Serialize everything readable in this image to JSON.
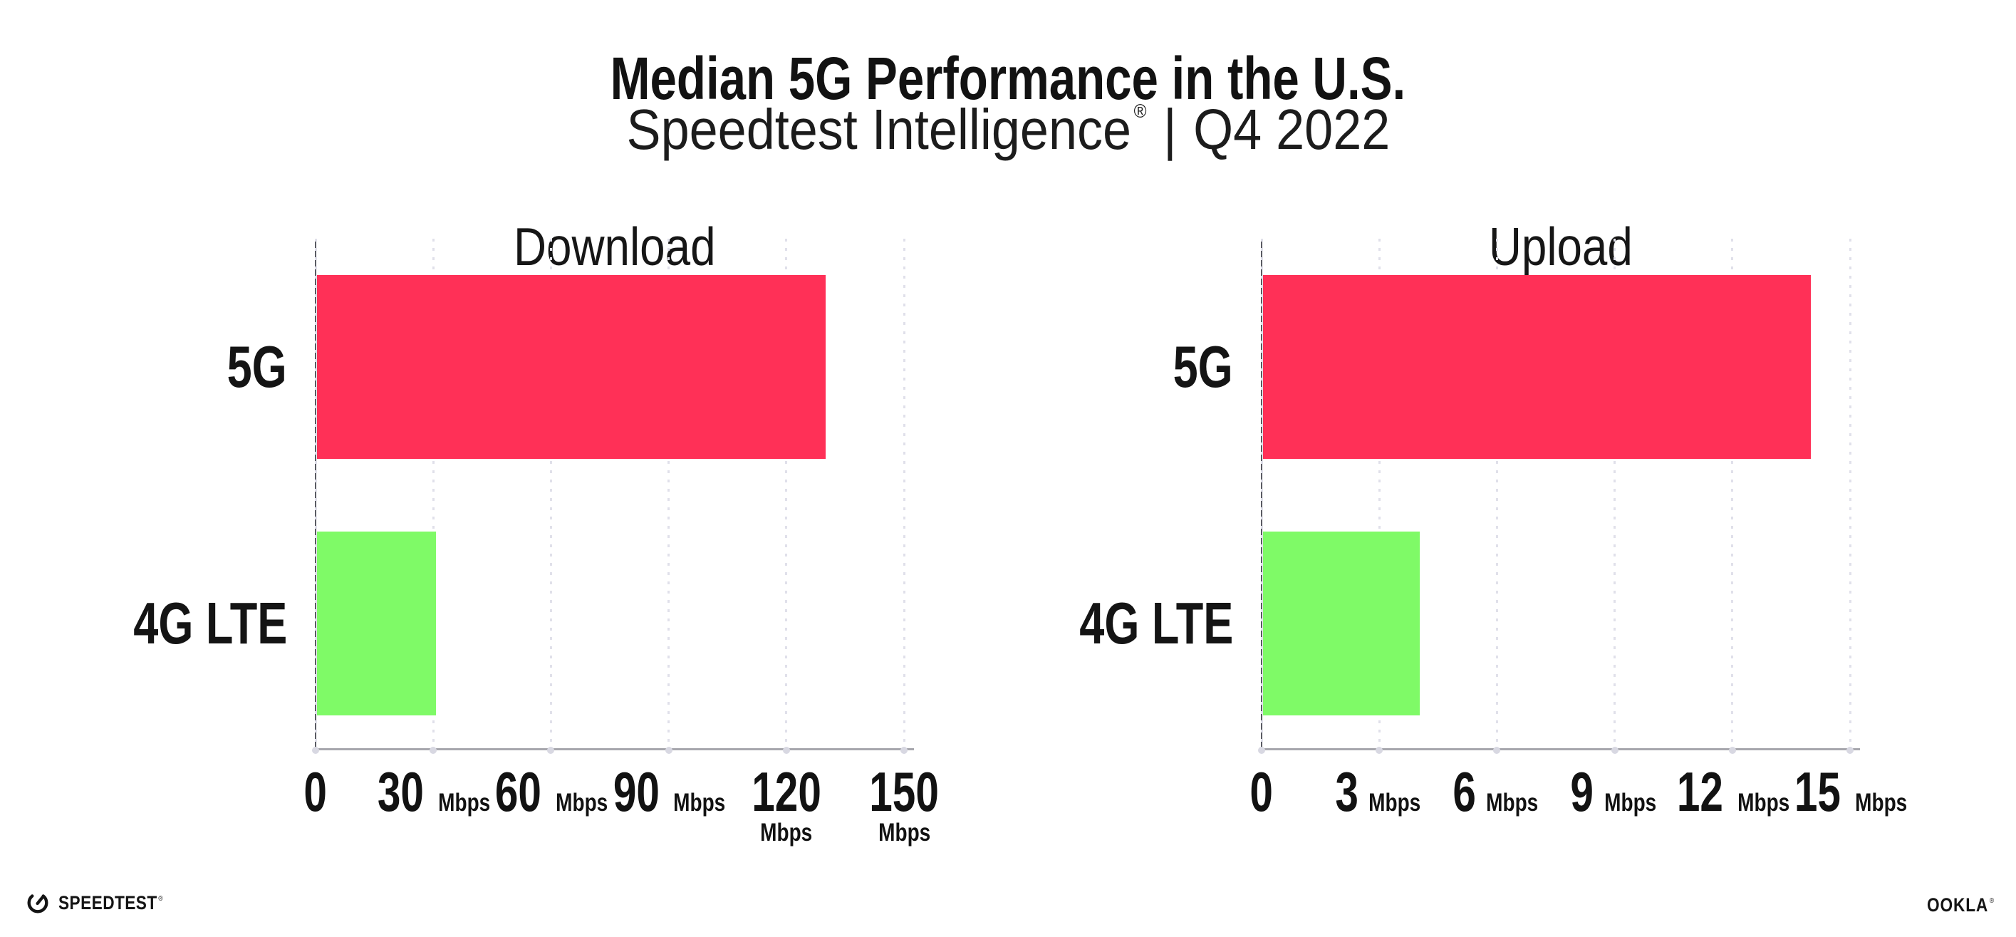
{
  "page": {
    "background": "#FFFFFF"
  },
  "header": {
    "title": "Median 5G Performance in the U.S.",
    "subtitle_brand": "Speedtest Intelligence",
    "subtitle_registered": "®",
    "subtitle_separator": "|",
    "subtitle_period": "Q4 2022"
  },
  "chart_data": [
    {
      "type": "bar",
      "orientation": "horizontal",
      "title": "Download",
      "categories": [
        "5G",
        "4G LTE"
      ],
      "values": [
        129.9,
        30.3
      ],
      "unit": "Mbps",
      "xlabel": "",
      "ylabel": "",
      "xlim": [
        0,
        152.5
      ],
      "xticks": [
        0,
        30,
        60,
        90,
        120,
        150
      ],
      "xtick_unit": "Mbps",
      "unit_shown_on_zero_tick": false,
      "grid": "dotted-vertical-gridlines",
      "legend": "none",
      "bar_colors": [
        "#FF3057",
        "#7FFA67"
      ]
    },
    {
      "type": "bar",
      "orientation": "horizontal",
      "title": "Upload",
      "categories": [
        "5G",
        "4G LTE"
      ],
      "values": [
        14.0,
        4.0
      ],
      "unit": "Mbps",
      "xlabel": "",
      "ylabel": "",
      "xlim": [
        0,
        15.25
      ],
      "xticks": [
        0,
        3,
        6,
        9,
        12,
        15
      ],
      "xtick_unit": "Mbps",
      "unit_shown_on_zero_tick": false,
      "grid": "dotted-vertical-gridlines",
      "legend": "none",
      "bar_colors": [
        "#FF3057",
        "#7FFA67"
      ]
    }
  ],
  "footer": {
    "speedtest_wordmark": "SPEEDTEST",
    "speedtest_registered": "®",
    "ookla_wordmark": "OOKLA",
    "ookla_registered": "®"
  },
  "colors": {
    "bar_5g": "#FF3057",
    "bar_4g_lte": "#7FFA67",
    "gridline": "#E0E0EA",
    "x_axis_line": "#A7A7AD",
    "y_axis_line": "#5A5B63",
    "axis_tick_dot": "#D8D8E2",
    "text": "#121212"
  }
}
